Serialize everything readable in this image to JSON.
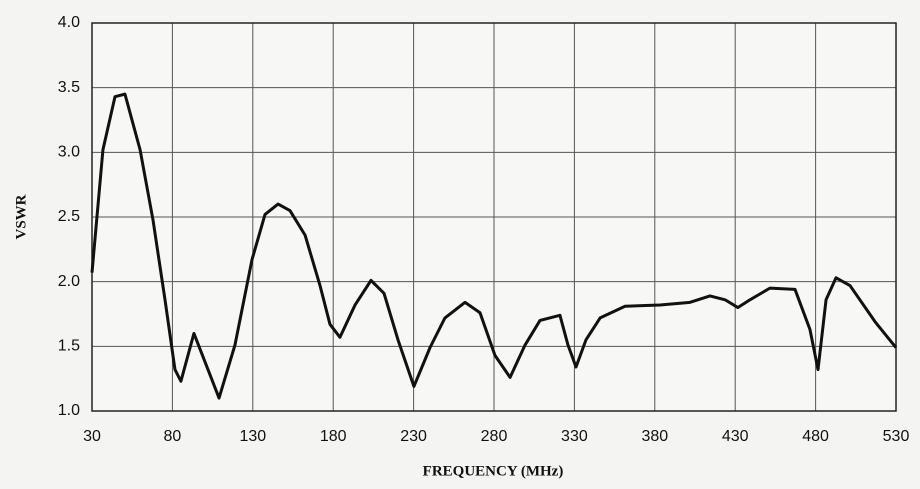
{
  "chart_data": {
    "type": "line",
    "xlabel": "FREQUENCY (MHz)",
    "ylabel": "VSWR",
    "xlim": [
      30,
      530
    ],
    "xticks": [
      30,
      80,
      130,
      180,
      230,
      280,
      330,
      380,
      430,
      480,
      530
    ],
    "ylim": [
      1,
      4
    ],
    "yticks": [
      {
        "value": 1,
        "label": "1.0"
      },
      {
        "value": 1.5,
        "label": "1.5"
      },
      {
        "value": 2,
        "label": "2.0"
      },
      {
        "value": 2.5,
        "label": "2.5"
      },
      {
        "value": 3,
        "label": "3.0"
      },
      {
        "value": 3.5,
        "label": "3.5"
      },
      {
        "value": 4,
        "label": "4.0"
      }
    ],
    "grid": true,
    "series": [
      {
        "color": "#111111",
        "x": [
          30,
          36.8,
          44.3,
          50.5,
          59.9,
          67.9,
          75.4,
          81.6,
          85.3,
          93.4,
          103.4,
          109,
          118.9,
          129.5,
          137.6,
          145.7,
          153.1,
          162.5,
          171.8,
          178,
          184.2,
          193.6,
          203.5,
          211.6,
          220.3,
          230.2,
          240.2,
          249.5,
          262,
          271.3,
          280.6,
          290,
          299.3,
          308.6,
          321,
          326,
          331,
          337.2,
          346,
          361.5,
          383.2,
          401.9,
          414.3,
          423.7,
          431.7,
          439.2,
          451.6,
          467.2,
          476.5,
          481.5,
          486.5,
          492.7,
          501.4,
          517,
          530
        ],
        "values": [
          2.07,
          3.02,
          3.43,
          3.45,
          3.02,
          2.48,
          1.86,
          1.32,
          1.23,
          1.6,
          1.28,
          1.1,
          1.51,
          2.17,
          2.52,
          2.6,
          2.55,
          2.36,
          1.97,
          1.67,
          1.57,
          1.82,
          2.01,
          1.91,
          1.55,
          1.19,
          1.49,
          1.72,
          1.84,
          1.76,
          1.43,
          1.26,
          1.51,
          1.7,
          1.74,
          1.51,
          1.34,
          1.55,
          1.72,
          1.81,
          1.82,
          1.84,
          1.89,
          1.86,
          1.8,
          1.86,
          1.95,
          1.94,
          1.63,
          1.32,
          1.86,
          2.03,
          1.97,
          1.69,
          1.49
        ]
      }
    ]
  }
}
